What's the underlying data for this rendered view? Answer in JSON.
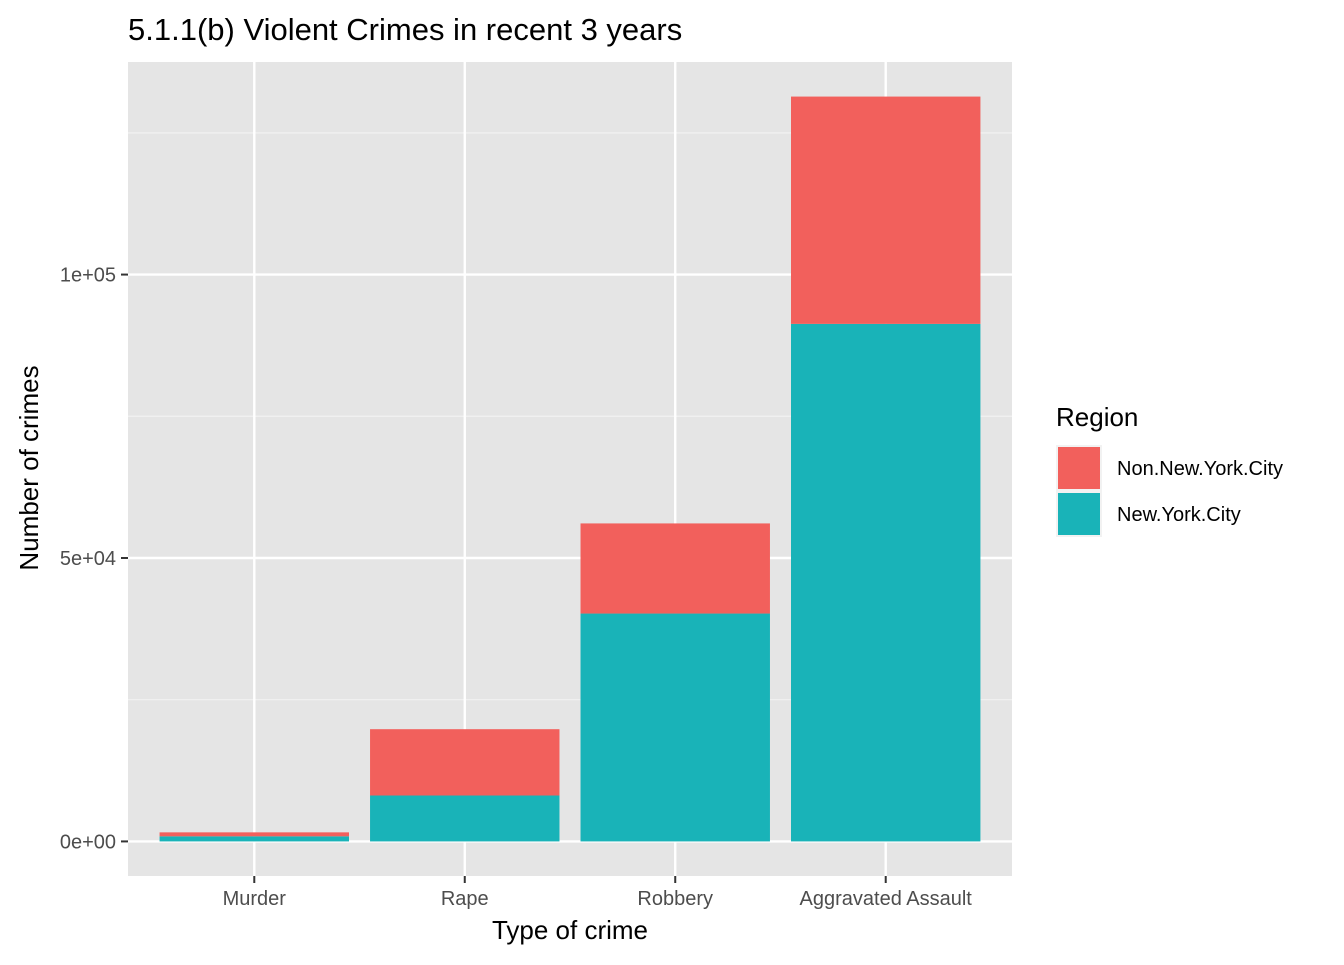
{
  "chart_data": {
    "type": "bar",
    "stacked": true,
    "title": "5.1.1(b) Violent Crimes in recent 3 years",
    "xlabel": "Type of crime",
    "ylabel": "Number of crimes",
    "categories": [
      "Murder",
      "Rape",
      "Robbery",
      "Aggravated Assault"
    ],
    "series": [
      {
        "name": "New.York.City",
        "color": "#19B3B8",
        "values": [
          900,
          8100,
          40200,
          91300
        ]
      },
      {
        "name": "Non.New.York.City",
        "color": "#F2605C",
        "values": [
          700,
          11700,
          15900,
          40100
        ]
      }
    ],
    "ylim": [
      -6100,
      137500
    ],
    "yticks": [
      0,
      50000,
      100000
    ],
    "ytick_labels": [
      "0e+00",
      "5e+04",
      "1e+05"
    ],
    "grid": true,
    "legend": {
      "title": "Region",
      "placement": "right",
      "entries": [
        "Non.New.York.City",
        "New.York.City"
      ]
    },
    "colors": {
      "panel_background": "#E5E5E5",
      "grid_major": "#FFFFFF",
      "grid_minor": "#F2F2F2",
      "tick_text": "#4D4D4D",
      "axis_text": "#000000"
    }
  }
}
